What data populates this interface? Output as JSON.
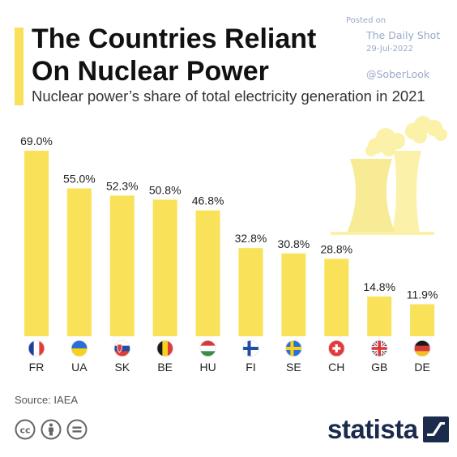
{
  "header": {
    "title_line1": "The Countries Reliant",
    "title_line2": "On Nuclear Power",
    "subtitle": "Nuclear power’s share of total electricity generation in 2021"
  },
  "watermark": {
    "posted_label": "Posted on",
    "site": "The Daily Shot",
    "date": "29-Jul-2022",
    "handle": "@SoberLook"
  },
  "chart_data": {
    "type": "bar",
    "categories": [
      "FR",
      "UA",
      "SK",
      "BE",
      "HU",
      "FI",
      "SE",
      "CH",
      "GB",
      "DE"
    ],
    "values": [
      69.0,
      55.0,
      52.3,
      50.8,
      46.8,
      32.8,
      30.8,
      28.8,
      14.8,
      11.9
    ],
    "value_labels": [
      "69.0%",
      "55.0%",
      "52.3%",
      "50.8%",
      "46.8%",
      "32.8%",
      "30.8%",
      "28.8%",
      "14.8%",
      "11.9%"
    ],
    "title": "The Countries Reliant On Nuclear Power",
    "subtitle": "Nuclear power’s share of total electricity generation in 2021",
    "unit": "%",
    "ylim": [
      0,
      69
    ],
    "grid": false,
    "legend": "none",
    "bar_color": "#F9E259",
    "flag_icons": [
      "france-flag-icon",
      "ukraine-flag-icon",
      "slovakia-flag-icon",
      "belgium-flag-icon",
      "hungary-flag-icon",
      "finland-flag-icon",
      "sweden-flag-icon",
      "switzerland-flag-icon",
      "uk-flag-icon",
      "germany-flag-icon"
    ]
  },
  "illustration": {
    "icon": "nuclear-cooling-tower-icon",
    "color": "#FBF1A8"
  },
  "footer": {
    "source": "Source: IAEA",
    "license_icons": [
      "creative-commons-icon",
      "attribution-icon",
      "no-derivatives-icon"
    ],
    "brand": "statista",
    "brand_icon": "statista-logo-icon"
  },
  "colors": {
    "accent": "#F9E259",
    "title": "#111111",
    "text": "#222222",
    "watermark": "#9aaac8",
    "brand": "#1a2b4c"
  }
}
